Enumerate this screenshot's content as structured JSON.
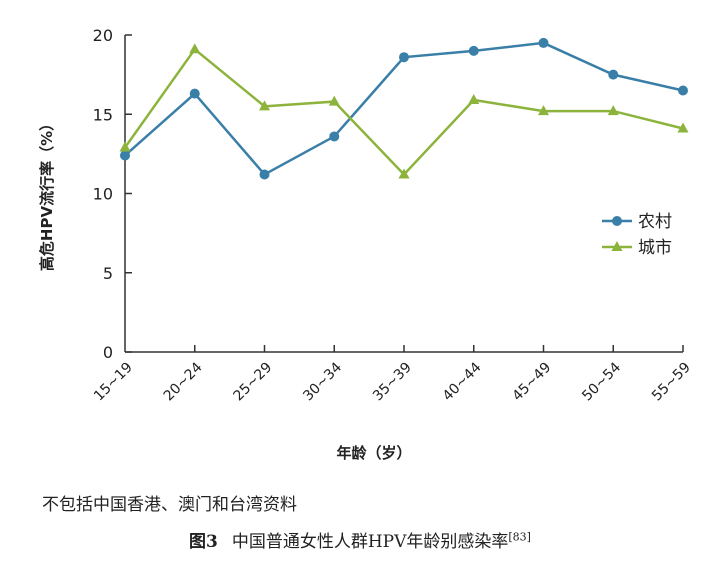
{
  "chart_data": {
    "type": "line",
    "title": "",
    "xlabel": "年龄（岁）",
    "ylabel": "高危HPV流行率（%）",
    "categories": [
      "15~19",
      "20~24",
      "25~29",
      "30~34",
      "35~39",
      "40~44",
      "45~49",
      "50~54",
      "55~59"
    ],
    "ylim": [
      0,
      20
    ],
    "yticks": [
      0,
      5,
      10,
      15,
      20
    ],
    "grid": false,
    "legend_position": "right",
    "series": [
      {
        "name": "农村",
        "marker": "circle",
        "color": "#3a7fa8",
        "values": [
          12.4,
          16.3,
          11.2,
          13.6,
          18.6,
          19.0,
          19.5,
          17.5,
          16.5
        ]
      },
      {
        "name": "城市",
        "marker": "triangle",
        "color": "#8cb43c",
        "values": [
          12.9,
          19.1,
          15.5,
          15.8,
          11.2,
          15.9,
          15.2,
          15.2,
          14.1
        ]
      }
    ]
  },
  "note": "不包括中国香港、澳门和台湾资料",
  "caption": {
    "label": "图3",
    "text": "中国普通女性人群HPV年龄别感染率",
    "ref": "[83]"
  }
}
